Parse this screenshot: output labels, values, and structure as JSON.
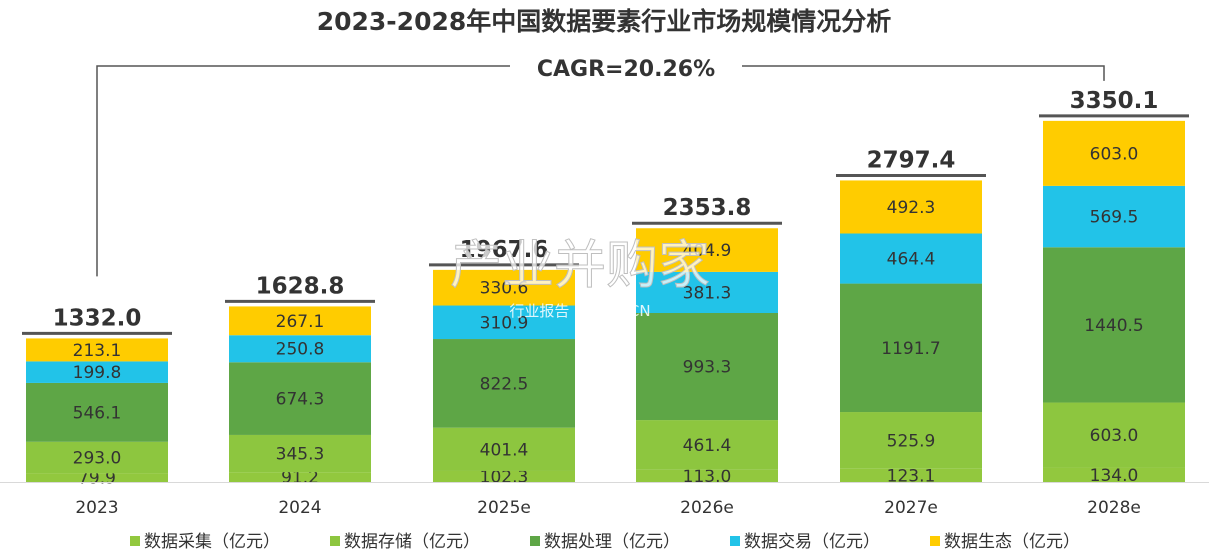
{
  "chart_data": {
    "type": "bar",
    "stacked": true,
    "title": "2023-2028年中国数据要素行业市场规模情况分析",
    "annotation": "CAGR=20.26%",
    "watermark": {
      "main": "产业并购家",
      "sub": "行业报告 IPOIPO.CN"
    },
    "categories": [
      "2023",
      "2024",
      "2025e",
      "2026e",
      "2027e",
      "2028e"
    ],
    "totals": [
      "1332.0",
      "1628.8",
      "1967.6",
      "2353.8",
      "2797.4",
      "3350.1"
    ],
    "series": [
      {
        "name": "数据采集（亿元）",
        "color": "#92c83e",
        "values": [
          79.9,
          91.2,
          102.3,
          113.0,
          123.1,
          134.0
        ]
      },
      {
        "name": "数据存储（亿元）",
        "color": "#8dc63f",
        "values": [
          293.0,
          345.3,
          401.4,
          461.4,
          525.9,
          603.0
        ]
      },
      {
        "name": "数据处理（亿元）",
        "color": "#5ea646",
        "values": [
          546.1,
          674.3,
          822.5,
          993.3,
          1191.7,
          1440.5
        ]
      },
      {
        "name": "数据交易（亿元）",
        "color": "#22c3e8",
        "values": [
          199.8,
          250.8,
          310.9,
          381.3,
          464.4,
          569.5
        ]
      },
      {
        "name": "数据生态（亿元）",
        "color": "#ffcc00",
        "values": [
          213.1,
          267.1,
          330.6,
          404.9,
          492.3,
          603.0
        ]
      }
    ],
    "legend_position": "bottom",
    "grid": false
  }
}
